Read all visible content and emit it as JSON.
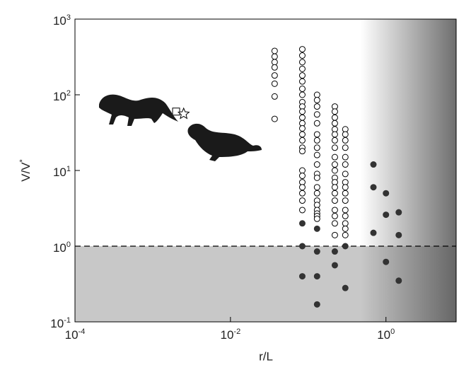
{
  "chart_data": {
    "type": "scatter",
    "xlabel": "r/L",
    "ylabel": {
      "text": "V/V",
      "sup": "*"
    },
    "xscale": "log",
    "yscale": "log",
    "xlim": [
      0.0001,
      8
    ],
    "ylim": [
      0.1,
      1000
    ],
    "xticks": [
      {
        "value": 0.0001,
        "label": "10",
        "exp": "-4"
      },
      {
        "value": 0.01,
        "label": "10",
        "exp": "-2"
      },
      {
        "value": 1,
        "label": "10",
        "exp": "0"
      }
    ],
    "yticks": [
      {
        "value": 0.1,
        "label": "10",
        "exp": "-1"
      },
      {
        "value": 1,
        "label": "10",
        "exp": "0"
      },
      {
        "value": 10,
        "label": "10",
        "exp": "1"
      },
      {
        "value": 100,
        "label": "10",
        "exp": "2"
      },
      {
        "value": 1000,
        "label": "10",
        "exp": "3"
      }
    ],
    "hline": 1,
    "shade_below": {
      "y": [
        0.1,
        1
      ],
      "color": "#c8c8c8"
    },
    "shade_right": {
      "x": [
        0.47,
        8
      ],
      "color": "#555555"
    },
    "series": [
      {
        "marker": "circle-open",
        "color": "#000000",
        "x": [
          0.037,
          0.037,
          0.037,
          0.037,
          0.037,
          0.037,
          0.037,
          0.037,
          0.084,
          0.084,
          0.084,
          0.084,
          0.084,
          0.084,
          0.084,
          0.084,
          0.084,
          0.084,
          0.084,
          0.084,
          0.084,
          0.084,
          0.084,
          0.084,
          0.084,
          0.084,
          0.084,
          0.084,
          0.084,
          0.084,
          0.084,
          0.084,
          0.084,
          0.13,
          0.13,
          0.13,
          0.13,
          0.13,
          0.13,
          0.13,
          0.13,
          0.13,
          0.13,
          0.13,
          0.13,
          0.13,
          0.13,
          0.13,
          0.13,
          0.13,
          0.13,
          0.13,
          0.13,
          0.22,
          0.22,
          0.22,
          0.22,
          0.22,
          0.22,
          0.22,
          0.22,
          0.22,
          0.22,
          0.22,
          0.22,
          0.22,
          0.22,
          0.22,
          0.22,
          0.22,
          0.22,
          0.22,
          0.22,
          0.3,
          0.3,
          0.3,
          0.3,
          0.3,
          0.3,
          0.3,
          0.3,
          0.3,
          0.3,
          0.3,
          0.3,
          0.3,
          0.3,
          0.3,
          0.3
        ],
        "values": [
          380,
          320,
          270,
          230,
          180,
          140,
          95,
          48,
          400,
          330,
          270,
          220,
          180,
          150,
          120,
          100,
          80,
          70,
          60,
          50,
          42,
          36,
          30,
          25,
          20,
          18,
          10,
          8.5,
          7,
          6,
          5,
          4,
          3,
          100,
          85,
          70,
          55,
          42,
          30,
          25,
          20,
          16,
          12,
          9,
          8,
          6,
          5,
          4,
          3.5,
          3,
          2.7,
          2.5,
          2.3,
          70,
          60,
          50,
          42,
          35,
          30,
          25,
          20,
          15,
          12,
          10,
          8,
          7,
          6,
          5,
          4,
          3,
          2.5,
          2,
          1.4,
          35,
          30,
          25,
          20,
          15,
          12,
          9,
          7,
          6,
          5,
          4,
          3,
          2.5,
          2,
          1.7,
          1.4
        ]
      },
      {
        "marker": "circle-filled",
        "color": "#333333",
        "x": [
          0.084,
          0.084,
          0.084,
          0.13,
          0.13,
          0.13,
          0.13,
          0.22,
          0.22,
          0.3,
          0.3,
          0.69,
          0.69,
          0.69,
          1.0,
          1.0,
          1.0,
          1.46,
          1.46,
          1.46
        ],
        "values": [
          2.0,
          1.0,
          0.4,
          1.7,
          0.85,
          0.4,
          0.17,
          0.85,
          0.56,
          1.0,
          0.28,
          12,
          6,
          1.5,
          5,
          2.6,
          0.62,
          2.8,
          1.4,
          0.35
        ]
      },
      {
        "marker": "square-open",
        "color": "#000000",
        "x": [
          0.002
        ],
        "values": [
          60
        ]
      },
      {
        "marker": "star-open",
        "color": "#000000",
        "x": [
          0.0025
        ],
        "values": [
          56
        ]
      }
    ]
  }
}
